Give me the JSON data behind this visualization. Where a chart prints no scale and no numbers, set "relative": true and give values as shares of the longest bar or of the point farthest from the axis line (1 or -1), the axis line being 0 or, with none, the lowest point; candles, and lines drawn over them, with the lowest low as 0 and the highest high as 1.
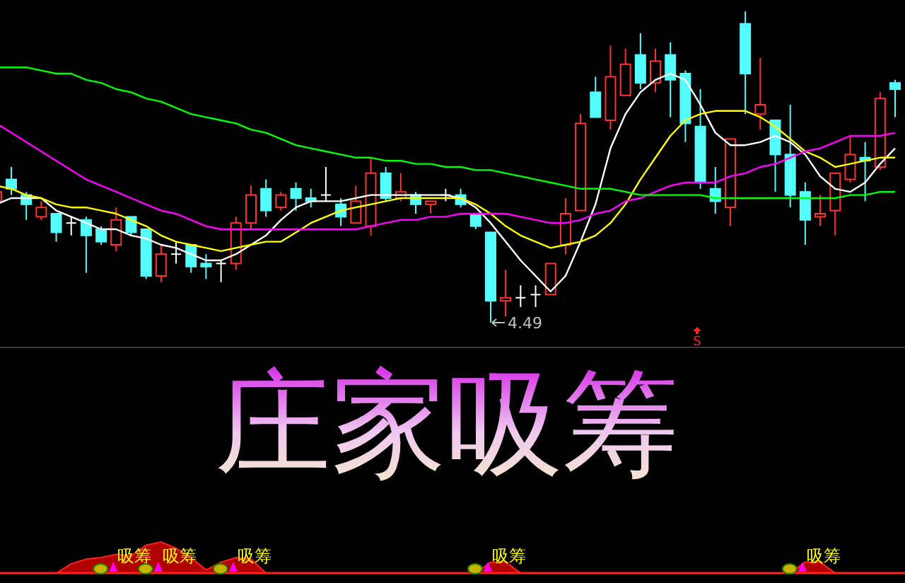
{
  "chart_data": [
    {
      "type": "candlestick",
      "relative": true,
      "categories": [
        null,
        null,
        null,
        null,
        null,
        null,
        null,
        null,
        null,
        null,
        null,
        null,
        null,
        null,
        null,
        null,
        null,
        null,
        null,
        null,
        null,
        null,
        null,
        null,
        null,
        null,
        null,
        null,
        null,
        null,
        null,
        null,
        null,
        null,
        null,
        null,
        null,
        null,
        null,
        null,
        null,
        null,
        null,
        null,
        null,
        null,
        null,
        null,
        null,
        null,
        null,
        null,
        null,
        null,
        null,
        null,
        null,
        null,
        null,
        null,
        null
      ],
      "ohlc": [
        [
          0.39,
          0.43,
          0.38,
          0.42
        ],
        [
          0.46,
          0.5,
          0.41,
          0.43
        ],
        [
          0.41,
          0.42,
          0.33,
          0.38
        ],
        [
          0.34,
          0.39,
          0.33,
          0.37
        ],
        [
          0.35,
          0.35,
          0.26,
          0.29
        ],
        [
          0.32,
          0.34,
          0.28,
          0.32
        ],
        [
          0.33,
          0.34,
          0.16,
          0.28
        ],
        [
          0.3,
          0.31,
          0.25,
          0.26
        ],
        [
          0.25,
          0.37,
          0.23,
          0.33
        ],
        [
          0.34,
          0.34,
          0.28,
          0.29
        ],
        [
          0.3,
          0.3,
          0.14,
          0.15
        ],
        [
          0.15,
          0.25,
          0.13,
          0.22
        ],
        [
          0.22,
          0.26,
          0.19,
          0.22
        ],
        [
          0.25,
          0.25,
          0.16,
          0.18
        ],
        [
          0.19,
          0.22,
          0.14,
          0.18
        ],
        [
          0.19,
          0.2,
          0.13,
          0.19
        ],
        [
          0.19,
          0.34,
          0.17,
          0.32
        ],
        [
          0.32,
          0.44,
          0.3,
          0.41
        ],
        [
          0.43,
          0.46,
          0.34,
          0.36
        ],
        [
          0.37,
          0.42,
          0.36,
          0.41
        ],
        [
          0.43,
          0.45,
          0.36,
          0.4
        ],
        [
          0.4,
          0.43,
          0.37,
          0.39
        ],
        [
          0.41,
          0.5,
          0.39,
          0.41
        ],
        [
          0.38,
          0.4,
          0.31,
          0.34
        ],
        [
          0.32,
          0.44,
          0.32,
          0.39
        ],
        [
          0.31,
          0.53,
          0.28,
          0.48
        ],
        [
          0.48,
          0.5,
          0.39,
          0.4
        ],
        [
          0.4,
          0.48,
          0.39,
          0.42
        ],
        [
          0.41,
          0.42,
          0.35,
          0.38
        ],
        [
          0.38,
          0.39,
          0.35,
          0.39
        ],
        [
          0.41,
          0.43,
          0.39,
          0.41
        ],
        [
          0.41,
          0.43,
          0.37,
          0.38
        ],
        [
          0.35,
          0.35,
          0.3,
          0.31
        ],
        [
          0.29,
          0.29,
          0,
          0.07
        ],
        [
          0.07,
          0.17,
          0.02,
          0.08
        ],
        [
          0.08,
          0.12,
          0.05,
          0.08
        ],
        [
          0.09,
          0.12,
          0.05,
          0.09
        ],
        [
          0.09,
          0.19,
          0.09,
          0.19
        ],
        [
          0.25,
          0.4,
          0.22,
          0.35
        ],
        [
          0.36,
          0.67,
          0.36,
          0.64
        ],
        [
          0.74,
          0.79,
          0.66,
          0.66
        ],
        [
          0.65,
          0.89,
          0.62,
          0.79
        ],
        [
          0.73,
          0.88,
          0.73,
          0.83
        ],
        [
          0.86,
          0.93,
          0.75,
          0.77
        ],
        [
          0.77,
          0.88,
          0.74,
          0.84
        ],
        [
          0.86,
          0.9,
          0.66,
          0.78
        ],
        [
          0.8,
          0.81,
          0.58,
          0.64
        ],
        [
          0.63,
          0.75,
          0.43,
          0.45
        ],
        [
          0.43,
          0.5,
          0.35,
          0.39
        ],
        [
          0.37,
          0.59,
          0.31,
          0.59
        ],
        [
          0.96,
          1,
          0.67,
          0.8
        ],
        [
          0.67,
          0.85,
          0.62,
          0.7
        ],
        [
          0.65,
          0.65,
          0.42,
          0.54
        ],
        [
          0.54,
          0.7,
          0.37,
          0.41
        ],
        [
          0.42,
          0.45,
          0.25,
          0.33
        ],
        [
          0.34,
          0.41,
          0.31,
          0.35
        ],
        [
          0.36,
          0.48,
          0.28,
          0.48
        ],
        [
          0.46,
          0.6,
          0.45,
          0.54
        ],
        [
          0.53,
          0.58,
          0.39,
          0.52
        ],
        [
          0.5,
          0.74,
          0.49,
          0.72
        ],
        [
          0.77,
          0.78,
          0.66,
          0.75
        ]
      ],
      "series": [
        {
          "type": "line",
          "color": "#ffffff",
          "values": [
            0.38,
            0.4,
            0.4,
            0.4,
            0.36,
            0.34,
            0.32,
            0.3,
            0.3,
            0.28,
            0.27,
            0.25,
            0.24,
            0.22,
            0.2,
            0.2,
            0.22,
            0.25,
            0.28,
            0.33,
            0.37,
            0.39,
            0.39,
            0.39,
            0.4,
            0.41,
            0.41,
            0.41,
            0.41,
            0.41,
            0.41,
            0.4,
            0.37,
            0.32,
            0.26,
            0.2,
            0.15,
            0.1,
            0.15,
            0.26,
            0.38,
            0.56,
            0.67,
            0.74,
            0.78,
            0.8,
            0.78,
            0.7,
            0.61,
            0.57,
            0.57,
            0.58,
            0.6,
            0.58,
            0.54,
            0.47,
            0.43,
            0.42,
            0.45,
            0.51,
            0.56
          ]
        },
        {
          "type": "line",
          "color": "#ffff00",
          "values": [
            0.44,
            0.43,
            0.41,
            0.4,
            0.38,
            0.37,
            0.37,
            0.36,
            0.35,
            0.33,
            0.31,
            0.28,
            0.26,
            0.25,
            0.24,
            0.23,
            0.24,
            0.25,
            0.26,
            0.26,
            0.29,
            0.32,
            0.34,
            0.36,
            0.37,
            0.38,
            0.39,
            0.4,
            0.4,
            0.4,
            0.4,
            0.4,
            0.38,
            0.35,
            0.31,
            0.28,
            0.26,
            0.24,
            0.25,
            0.26,
            0.28,
            0.32,
            0.38,
            0.46,
            0.53,
            0.6,
            0.65,
            0.67,
            0.68,
            0.68,
            0.68,
            0.66,
            0.63,
            0.59,
            0.55,
            0.53,
            0.5,
            0.51,
            0.52,
            0.53,
            0.53
          ]
        },
        {
          "type": "line",
          "color": "#ff00ff",
          "values": [
            0.64,
            0.61,
            0.58,
            0.55,
            0.52,
            0.49,
            0.46,
            0.44,
            0.42,
            0.4,
            0.38,
            0.36,
            0.35,
            0.33,
            0.31,
            0.3,
            0.3,
            0.3,
            0.3,
            0.3,
            0.3,
            0.3,
            0.3,
            0.3,
            0.3,
            0.31,
            0.32,
            0.33,
            0.33,
            0.34,
            0.34,
            0.35,
            0.35,
            0.35,
            0.35,
            0.34,
            0.33,
            0.32,
            0.32,
            0.33,
            0.35,
            0.36,
            0.39,
            0.4,
            0.42,
            0.44,
            0.45,
            0.45,
            0.45,
            0.47,
            0.48,
            0.5,
            0.51,
            0.53,
            0.55,
            0.56,
            0.58,
            0.6,
            0.6,
            0.6,
            0.61
          ]
        },
        {
          "type": "line",
          "color": "#00ff00",
          "values": [
            0.82,
            0.82,
            0.82,
            0.81,
            0.8,
            0.8,
            0.78,
            0.77,
            0.75,
            0.74,
            0.72,
            0.71,
            0.69,
            0.67,
            0.66,
            0.65,
            0.64,
            0.62,
            0.61,
            0.59,
            0.57,
            0.56,
            0.55,
            0.54,
            0.53,
            0.53,
            0.52,
            0.52,
            0.51,
            0.51,
            0.5,
            0.5,
            0.49,
            0.49,
            0.48,
            0.47,
            0.46,
            0.45,
            0.44,
            0.43,
            0.43,
            0.43,
            0.42,
            0.41,
            0.41,
            0.41,
            0.41,
            0.41,
            0.4,
            0.4,
            0.4,
            0.4,
            0.4,
            0.4,
            0.4,
            0.4,
            0.4,
            0.41,
            0.41,
            0.42,
            0.42
          ]
        }
      ],
      "annotations": [
        "4.49",
        "S"
      ]
    },
    {
      "type": "area",
      "relative": true,
      "title": "庄家吸筹",
      "color": "#b00000",
      "categories": [
        null,
        null,
        null,
        null,
        null,
        null,
        null,
        null,
        null,
        null,
        null,
        null,
        null,
        null,
        null,
        null,
        null,
        null,
        null,
        null,
        null,
        null,
        null,
        null,
        null,
        null,
        null,
        null,
        null,
        null,
        null,
        null,
        null,
        null,
        null,
        null,
        null,
        null,
        null,
        null,
        null,
        null,
        null,
        null,
        null,
        null,
        null,
        null,
        null,
        null,
        null,
        null,
        null,
        null,
        null,
        null,
        null,
        null,
        null,
        null,
        null
      ],
      "values": [
        0,
        0,
        0,
        0,
        0,
        0.3,
        0.45,
        0.5,
        0.6,
        0.55,
        0.9,
        1,
        0.8,
        0.5,
        0.1,
        0.35,
        0.5,
        0.45,
        0,
        0,
        0,
        0,
        0,
        0,
        0,
        0,
        0,
        0,
        0,
        0,
        0,
        0,
        0,
        0.35,
        0.35,
        0,
        0,
        0,
        0,
        0,
        0,
        0,
        0,
        0,
        0,
        0,
        0,
        0,
        0,
        0,
        0,
        0,
        0,
        0,
        0.35,
        0.35,
        0,
        0,
        0,
        0,
        0
      ],
      "annotations": [
        "吸筹",
        "吸筹",
        "吸筹",
        "吸筹",
        "吸筹"
      ]
    }
  ]
}
